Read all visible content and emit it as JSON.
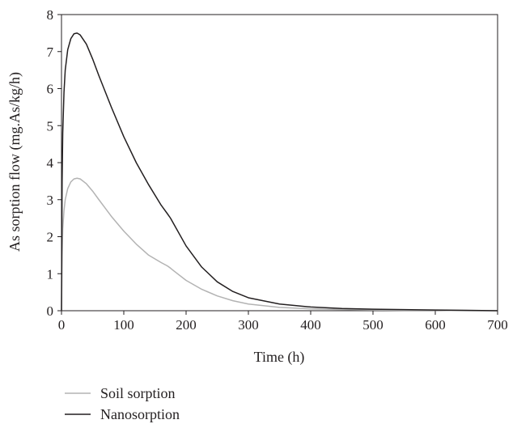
{
  "chart_data": {
    "type": "line",
    "title": "",
    "xlabel": "Time (h)",
    "ylabel": "As sorption flow (mg.As/kg/h)",
    "xlim": [
      0,
      700
    ],
    "ylim": [
      0,
      8
    ],
    "xticks": [
      0,
      100,
      200,
      300,
      400,
      500,
      600,
      700
    ],
    "yticks": [
      0,
      1,
      2,
      3,
      4,
      5,
      6,
      7,
      8
    ],
    "grid": false,
    "legend_position": "bottom-left",
    "series": [
      {
        "name": "Soil sorption",
        "color": "#b3b3b3",
        "x": [
          0,
          1,
          2,
          4,
          6,
          10,
          15,
          20,
          25,
          30,
          40,
          50,
          60,
          80,
          100,
          120,
          140,
          160,
          170,
          175,
          180,
          200,
          225,
          250,
          275,
          300,
          350,
          400,
          450,
          500,
          550,
          600,
          650,
          700
        ],
        "y": [
          0,
          1.5,
          2.2,
          2.7,
          3.0,
          3.3,
          3.48,
          3.56,
          3.58,
          3.56,
          3.43,
          3.23,
          3.0,
          2.55,
          2.15,
          1.8,
          1.5,
          1.3,
          1.21,
          1.15,
          1.08,
          0.82,
          0.58,
          0.4,
          0.27,
          0.18,
          0.09,
          0.05,
          0.03,
          0.02,
          0.01,
          0.01,
          0.0,
          0.0
        ]
      },
      {
        "name": "Nanosorption",
        "color": "#231f20",
        "x": [
          0,
          1,
          2,
          4,
          6,
          10,
          15,
          20,
          25,
          30,
          40,
          50,
          60,
          80,
          100,
          120,
          140,
          160,
          170,
          175,
          180,
          200,
          225,
          250,
          275,
          300,
          350,
          400,
          450,
          500,
          550,
          600,
          650,
          700
        ],
        "y": [
          0,
          3.5,
          4.8,
          5.9,
          6.5,
          7.05,
          7.35,
          7.48,
          7.5,
          7.45,
          7.2,
          6.8,
          6.35,
          5.5,
          4.7,
          4.0,
          3.4,
          2.85,
          2.62,
          2.5,
          2.35,
          1.75,
          1.18,
          0.78,
          0.52,
          0.35,
          0.18,
          0.1,
          0.06,
          0.04,
          0.03,
          0.02,
          0.01,
          0.0
        ]
      }
    ]
  }
}
